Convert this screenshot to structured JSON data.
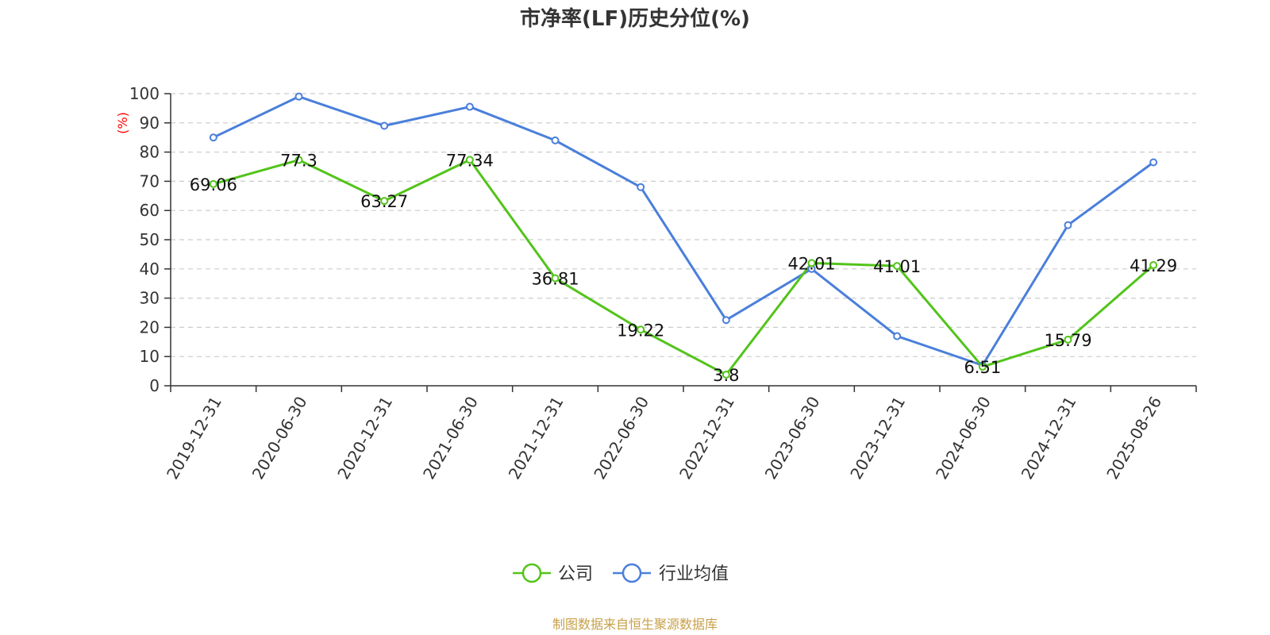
{
  "chart_data": {
    "type": "line",
    "title": "市净率(LF)历史分位(%)",
    "ylabel": "(%)",
    "xlabel": "",
    "ylim": [
      0,
      100
    ],
    "yticks": [
      0,
      10,
      20,
      30,
      40,
      50,
      60,
      70,
      80,
      90,
      100
    ],
    "grid": true,
    "legend_position": "bottom-center",
    "categories": [
      "2019-12-31",
      "2020-06-30",
      "2020-12-31",
      "2021-06-30",
      "2021-12-31",
      "2022-06-30",
      "2022-12-31",
      "2023-06-30",
      "2023-12-31",
      "2024-06-30",
      "2024-12-31",
      "2025-08-26"
    ],
    "series": [
      {
        "name": "公司",
        "color": "#52c41a",
        "values": [
          69.06,
          77.3,
          63.27,
          77.34,
          36.81,
          19.22,
          3.8,
          42.01,
          41.01,
          6.51,
          15.79,
          41.29
        ],
        "labels": [
          "69.06",
          "77.3",
          "63.27",
          "77.34",
          "36.81",
          "19.22",
          "3.8",
          "42.01",
          "41.01",
          "6.51",
          "15.79",
          "41.29"
        ]
      },
      {
        "name": "行业均值",
        "color": "#4a7fdb",
        "values": [
          85,
          99,
          89,
          95.5,
          84,
          68,
          22.5,
          40,
          17,
          7,
          55,
          76.5
        ]
      }
    ]
  },
  "footer": "制图数据来自恒生聚源数据库"
}
